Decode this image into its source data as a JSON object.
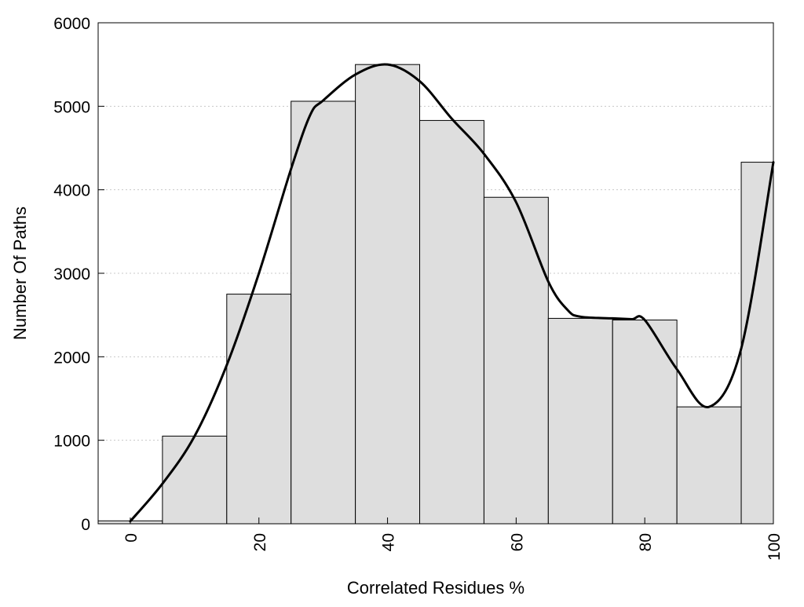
{
  "chart_data": {
    "type": "bar",
    "xlabel": "Correlated Residues %",
    "ylabel": "Number Of Paths",
    "xlim": [
      -5,
      100
    ],
    "ylim": [
      0,
      6000
    ],
    "x_ticks": [
      0,
      20,
      40,
      60,
      80,
      100
    ],
    "y_ticks": [
      0,
      1000,
      2000,
      3000,
      4000,
      5000,
      6000
    ],
    "bin_width": 10,
    "bins": [
      {
        "center": 0,
        "value": 35
      },
      {
        "center": 10,
        "value": 1050
      },
      {
        "center": 20,
        "value": 2750
      },
      {
        "center": 30,
        "value": 5060
      },
      {
        "center": 40,
        "value": 5500
      },
      {
        "center": 50,
        "value": 4830
      },
      {
        "center": 60,
        "value": 3910
      },
      {
        "center": 70,
        "value": 2460
      },
      {
        "center": 80,
        "value": 2440
      },
      {
        "center": 90,
        "value": 1400
      },
      {
        "center": 100,
        "value": 4330
      }
    ],
    "curve": {
      "x": [
        0,
        5,
        10,
        15,
        20,
        25,
        28,
        30,
        35,
        40,
        45,
        50,
        55,
        60,
        65,
        68,
        70,
        75,
        78,
        80,
        85,
        90,
        95,
        100
      ],
      "y": [
        30,
        480,
        1050,
        1900,
        3000,
        4250,
        4900,
        5070,
        5380,
        5500,
        5300,
        4850,
        4430,
        3850,
        2900,
        2560,
        2480,
        2460,
        2450,
        2440,
        1850,
        1400,
        2100,
        4330
      ]
    },
    "grid": "horizontal dotted",
    "legend": "none"
  }
}
